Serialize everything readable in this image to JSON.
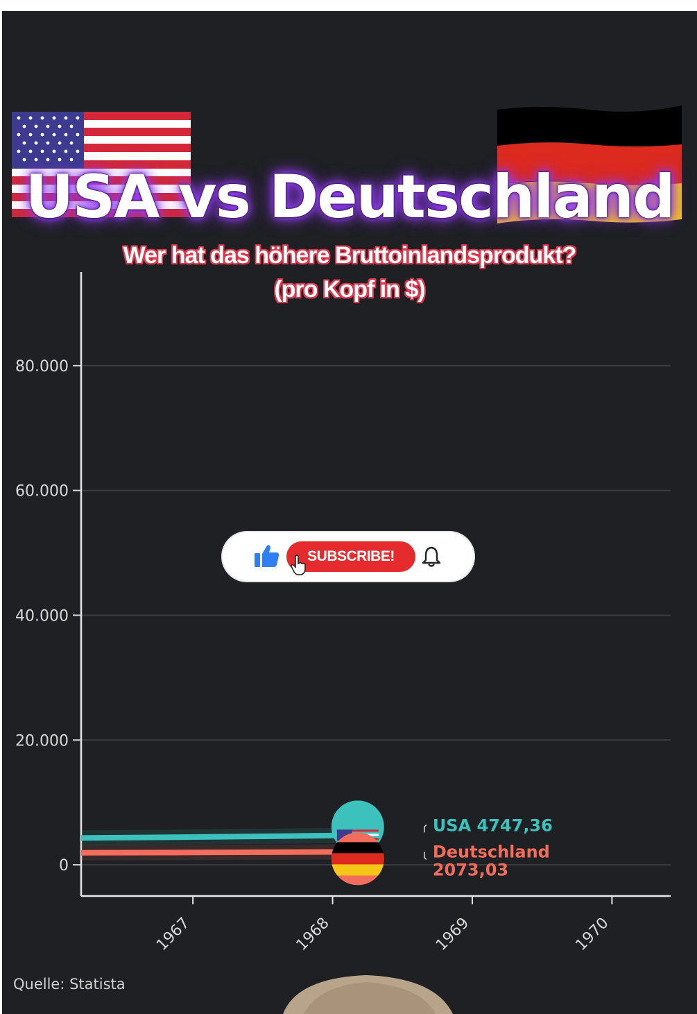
{
  "header": {
    "title": "USA vs Deutschland",
    "subtitle_line1": "Wer hat das höhere Bruttoinlandsprodukt?",
    "subtitle_line2": "(pro Kopf in $)"
  },
  "overlay": {
    "subscribe_label": "SUBSCRIBE!",
    "like_icon": "thumbs-up-icon",
    "bell_icon": "bell-icon",
    "cursor_icon": "hand-cursor-icon"
  },
  "footer": {
    "source": "Quelle: Statista"
  },
  "colors": {
    "background": "#1f2024",
    "usa": "#3cc1bd",
    "deutschland": "#f26d5b",
    "grid": "#3a3b40",
    "subscribe_red": "#e62b2f",
    "title_glow": "#8a35ff"
  },
  "chart_data": {
    "type": "line",
    "title": "",
    "xlabel": "",
    "ylabel": "",
    "xlim": [
      1966.2,
      1970.42
    ],
    "ylim": [
      -5000,
      95000
    ],
    "x_ticks": [
      1967,
      1968,
      1969,
      1970
    ],
    "y_ticks": [
      0,
      20000,
      40000,
      60000,
      80000
    ],
    "y_tick_labels": [
      "0",
      "20.000",
      "40.000",
      "60.000",
      "80.000"
    ],
    "grid": true,
    "series": [
      {
        "name": "USA",
        "color": "#3cc1bd",
        "flag": "usa",
        "x": [
          1966.2,
          1967,
          1967.5,
          1968,
          1968.18
        ],
        "y": [
          4300,
          4450,
          4560,
          4690,
          4747.36
        ],
        "label_value": "4747,36"
      },
      {
        "name": "Deutschland",
        "color": "#f26d5b",
        "flag": "germany",
        "x": [
          1966.2,
          1967,
          1967.5,
          1968,
          1968.18
        ],
        "y": [
          1930,
          1980,
          2020,
          2060,
          2073.03
        ],
        "label_value": "2073,03"
      }
    ]
  }
}
